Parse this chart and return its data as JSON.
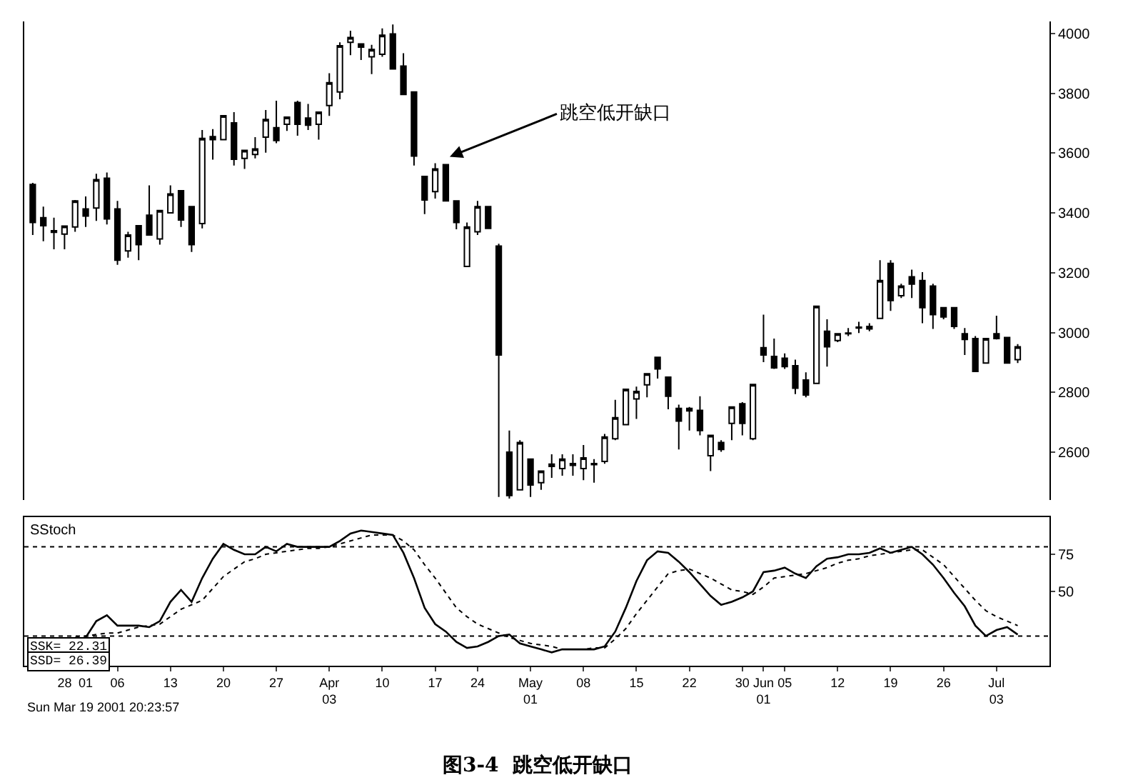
{
  "chart_data": [
    {
      "type": "candlestick",
      "title": "图3-4  跳空低开缺口",
      "categories": [
        null,
        null,
        null,
        null,
        null,
        null,
        null,
        null,
        null,
        null,
        null,
        null,
        null,
        null,
        null,
        null,
        null,
        null,
        null,
        null,
        null,
        null,
        null,
        null,
        null,
        null,
        null,
        null,
        null,
        null,
        null,
        null,
        null,
        null,
        null,
        null,
        null,
        null,
        null,
        null,
        null,
        null,
        null,
        null,
        null,
        null,
        null,
        null,
        null,
        null,
        null,
        null,
        null,
        null,
        null,
        null,
        null,
        null,
        null,
        null,
        null,
        null,
        null,
        null,
        null,
        null,
        null,
        null,
        null,
        null,
        null,
        null,
        null,
        null,
        null,
        null,
        null,
        null,
        null,
        null,
        null,
        null,
        null,
        null,
        null,
        null,
        null,
        null,
        null,
        null,
        null,
        null,
        null,
        null
      ],
      "ohlc": [
        [
          3495,
          3500,
          3326,
          3368
        ],
        [
          3384,
          3421,
          3305,
          3357
        ],
        [
          3340,
          3384,
          3278,
          3335
        ],
        [
          3329,
          3356,
          3278,
          3356
        ],
        [
          3353,
          3443,
          3337,
          3440
        ],
        [
          3413,
          3455,
          3353,
          3389
        ],
        [
          3416,
          3531,
          3373,
          3511
        ],
        [
          3516,
          3535,
          3361,
          3380
        ],
        [
          3413,
          3440,
          3226,
          3242
        ],
        [
          3273,
          3337,
          3250,
          3326
        ],
        [
          3357,
          3357,
          3242,
          3294
        ],
        [
          3392,
          3492,
          3326,
          3326
        ],
        [
          3313,
          3408,
          3294,
          3408
        ],
        [
          3400,
          3492,
          3400,
          3463
        ],
        [
          3474,
          3474,
          3353,
          3376
        ],
        [
          3421,
          3421,
          3269,
          3294
        ],
        [
          3364,
          3677,
          3348,
          3649
        ],
        [
          3655,
          3680,
          3578,
          3645
        ],
        [
          3645,
          3725,
          3645,
          3725
        ],
        [
          3701,
          3737,
          3558,
          3579
        ],
        [
          3582,
          3609,
          3547,
          3609
        ],
        [
          3595,
          3653,
          3582,
          3614
        ],
        [
          3653,
          3744,
          3601,
          3712
        ],
        [
          3685,
          3775,
          3633,
          3642
        ],
        [
          3696,
          3720,
          3674,
          3720
        ],
        [
          3769,
          3775,
          3658,
          3696
        ],
        [
          3717,
          3764,
          3677,
          3693
        ],
        [
          3696,
          3737,
          3645,
          3737
        ],
        [
          3759,
          3867,
          3724,
          3835
        ],
        [
          3804,
          3970,
          3780,
          3959
        ],
        [
          3970,
          4009,
          3927,
          3986
        ],
        [
          3965,
          3965,
          3911,
          3954
        ],
        [
          3922,
          3962,
          3864,
          3946
        ],
        [
          3930,
          4017,
          3922,
          3994
        ],
        [
          3998,
          4030,
          3881,
          3881
        ],
        [
          3891,
          3934,
          3796,
          3796
        ],
        [
          3804,
          3804,
          3558,
          3590
        ],
        [
          3522,
          3522,
          3396,
          3443
        ],
        [
          3471,
          3566,
          3448,
          3547
        ],
        [
          3561,
          3561,
          3440,
          3440
        ],
        [
          3440,
          3440,
          3345,
          3368
        ],
        [
          3221,
          3368,
          3221,
          3353
        ],
        [
          3337,
          3440,
          3326,
          3421
        ],
        [
          3421,
          3421,
          3348,
          3348
        ],
        [
          3289,
          3297,
          2450,
          2925
        ],
        [
          2600,
          2672,
          2445,
          2455
        ],
        [
          2474,
          2640,
          2474,
          2632
        ],
        [
          2577,
          2577,
          2450,
          2490
        ],
        [
          2498,
          2537,
          2474,
          2537
        ],
        [
          2552,
          2593,
          2514,
          2560
        ],
        [
          2545,
          2593,
          2521,
          2577
        ],
        [
          2562,
          2593,
          2521,
          2556
        ],
        [
          2545,
          2624,
          2506,
          2581
        ],
        [
          2558,
          2577,
          2498,
          2562
        ],
        [
          2569,
          2661,
          2561,
          2651
        ],
        [
          2645,
          2775,
          2640,
          2715
        ],
        [
          2692,
          2810,
          2692,
          2810
        ],
        [
          2778,
          2819,
          2711,
          2803
        ],
        [
          2825,
          2862,
          2783,
          2862
        ],
        [
          2917,
          2917,
          2846,
          2878
        ],
        [
          2851,
          2851,
          2743,
          2787
        ],
        [
          2746,
          2759,
          2609,
          2704
        ],
        [
          2746,
          2751,
          2672,
          2738
        ],
        [
          2740,
          2787,
          2656,
          2672
        ],
        [
          2588,
          2656,
          2537,
          2656
        ],
        [
          2632,
          2640,
          2601,
          2609
        ],
        [
          2696,
          2751,
          2640,
          2751
        ],
        [
          2762,
          2767,
          2656,
          2696
        ],
        [
          2645,
          2826,
          2640,
          2826
        ],
        [
          2949,
          3060,
          2901,
          2925
        ],
        [
          2920,
          2980,
          2878,
          2882
        ],
        [
          2914,
          2930,
          2878,
          2886
        ],
        [
          2889,
          2909,
          2794,
          2814
        ],
        [
          2841,
          2867,
          2783,
          2791
        ],
        [
          2830,
          3088,
          2830,
          3088
        ],
        [
          3004,
          3044,
          2886,
          2952
        ],
        [
          2973,
          2996,
          2968,
          2996
        ],
        [
          2998,
          3015,
          2988,
          2996
        ],
        [
          3018,
          3036,
          2998,
          3015
        ],
        [
          3012,
          3031,
          3004,
          3020
        ],
        [
          3047,
          3242,
          3047,
          3174
        ],
        [
          3231,
          3242,
          3072,
          3107
        ],
        [
          3123,
          3163,
          3115,
          3155
        ],
        [
          3186,
          3210,
          3115,
          3162
        ],
        [
          3174,
          3202,
          3031,
          3083
        ],
        [
          3155,
          3163,
          3012,
          3060
        ],
        [
          3083,
          3083,
          3044,
          3052
        ],
        [
          3083,
          3083,
          3012,
          3020
        ],
        [
          2996,
          3015,
          2925,
          2977
        ],
        [
          2980,
          2988,
          2870,
          2870
        ],
        [
          2898,
          2980,
          2898,
          2980
        ],
        [
          2996,
          3056,
          2977,
          2980
        ],
        [
          2983,
          2983,
          2898,
          2898
        ],
        [
          2909,
          2961,
          2898,
          2952
        ]
      ],
      "ylim": [
        2440,
        4040
      ],
      "yticks": [
        2600,
        2800,
        3000,
        3200,
        3400,
        3600,
        3800,
        4000
      ],
      "tick_labels": "y",
      "annotations": [
        "跳空低开缺口",
        "Sun Mar 19 2001 20:23:57"
      ]
    },
    {
      "type": "line",
      "categories": [
        null,
        null,
        null,
        "28",
        null,
        "01",
        null,
        null,
        "06",
        null,
        null,
        null,
        null,
        "13",
        null,
        null,
        null,
        null,
        "20",
        null,
        null,
        null,
        null,
        "27",
        null,
        null,
        null,
        null,
        "Apr\n03",
        null,
        null,
        null,
        null,
        "10",
        null,
        null,
        null,
        null,
        "17",
        null,
        null,
        null,
        "24",
        null,
        null,
        null,
        null,
        "May\n01",
        null,
        null,
        null,
        null,
        "08",
        null,
        null,
        null,
        null,
        "15",
        null,
        null,
        null,
        null,
        "22",
        null,
        null,
        null,
        null,
        "30",
        null,
        "Jun\n01",
        null,
        "05",
        null,
        null,
        null,
        null,
        "12",
        null,
        null,
        null,
        null,
        "19",
        null,
        null,
        null,
        null,
        "26",
        null,
        null,
        null,
        null,
        "Jul\n03",
        null,
        null
      ],
      "series": [
        {
          "color": "#000000",
          "line_style": "solid",
          "values": [
            null,
            null,
            null,
            null,
            null,
            19,
            30,
            34,
            27,
            27,
            27,
            26,
            30,
            43,
            51,
            43,
            59,
            72,
            82,
            78,
            75,
            75,
            80,
            77,
            82,
            80,
            80,
            80,
            80,
            84,
            89,
            91,
            90,
            89,
            88,
            76,
            59,
            39,
            28,
            23,
            16,
            12,
            13,
            16,
            20,
            21,
            15,
            13,
            11,
            9,
            11,
            11,
            11,
            11,
            13,
            23,
            39,
            57,
            71,
            77,
            76,
            70,
            63,
            55,
            47,
            41,
            43,
            46,
            50,
            63,
            64,
            66,
            62,
            59,
            67,
            72,
            73,
            75,
            75,
            76,
            79,
            76,
            78,
            80,
            75,
            68,
            59,
            49,
            40,
            27,
            20,
            24,
            26,
            21
          ]
        },
        {
          "color": "#000000",
          "line_style": "dotted",
          "values": [
            null,
            null,
            null,
            null,
            19,
            20,
            21,
            22,
            22,
            24,
            26,
            27,
            28,
            33,
            38,
            41,
            44,
            52,
            60,
            65,
            70,
            72,
            75,
            76,
            77,
            78,
            79,
            79,
            80,
            82,
            84,
            86,
            88,
            88,
            88,
            84,
            78,
            68,
            59,
            49,
            39,
            33,
            28,
            25,
            22,
            19,
            17,
            15,
            14,
            13,
            11,
            11,
            11,
            12,
            12,
            18,
            25,
            35,
            44,
            53,
            62,
            64,
            65,
            62,
            59,
            55,
            51,
            50,
            48,
            53,
            59,
            60,
            61,
            62,
            64,
            66,
            69,
            71,
            72,
            74,
            75,
            76,
            77,
            78,
            78,
            73,
            68,
            60,
            52,
            44,
            37,
            33,
            30,
            27
          ]
        }
      ],
      "ylim": [
        0,
        100
      ],
      "yticks": [
        75,
        50
      ],
      "ref_lines": [
        {
          "axis": "y",
          "value": 80,
          "color": "#000000",
          "line_style": "dotted"
        },
        {
          "axis": "y",
          "value": 20,
          "color": "#000000",
          "line_style": "dotted"
        }
      ],
      "annotations": [
        "SStoch",
        "SSK= 22.31",
        "SSD= 26.39"
      ]
    }
  ]
}
